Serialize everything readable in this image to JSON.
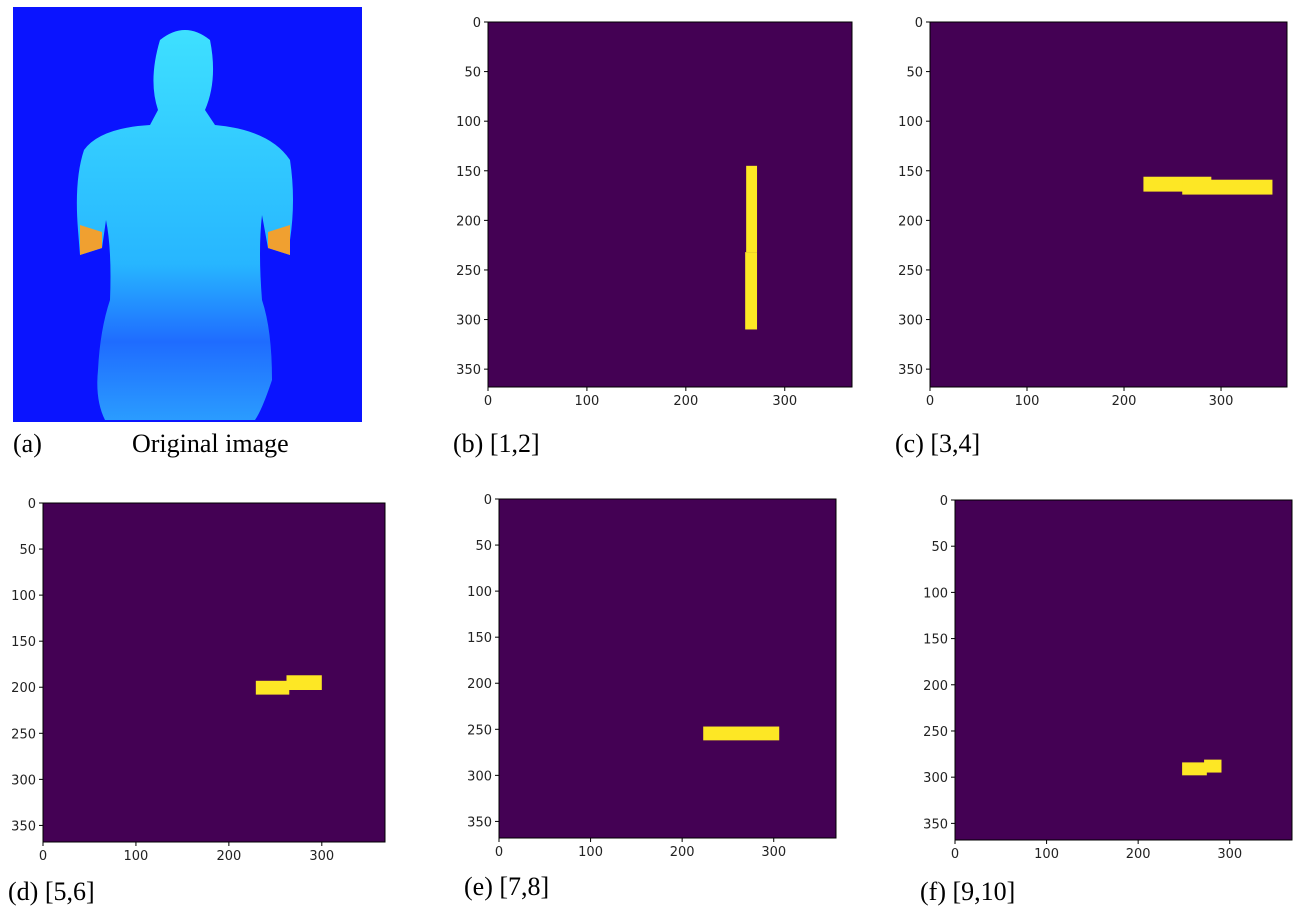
{
  "chart_data": [
    {
      "type": "image",
      "caption_label": "(a)",
      "caption": "Original image"
    },
    {
      "type": "mask",
      "caption": "(b) [1,2]",
      "xlim": [
        0,
        368
      ],
      "ylim": [
        368,
        0
      ],
      "xticks": [
        0,
        100,
        200,
        300
      ],
      "yticks": [
        0,
        50,
        100,
        150,
        200,
        250,
        300,
        350
      ],
      "background": "#440154",
      "color": "#fde725",
      "regions": [
        {
          "x": [
            261,
            272
          ],
          "y": [
            145,
            232
          ]
        },
        {
          "x": [
            260,
            272
          ],
          "y": [
            232,
            310
          ]
        }
      ]
    },
    {
      "type": "mask",
      "caption": "(c) [3,4]",
      "xlim": [
        0,
        368
      ],
      "ylim": [
        368,
        0
      ],
      "xticks": [
        0,
        100,
        200,
        300
      ],
      "yticks": [
        0,
        50,
        100,
        150,
        200,
        250,
        300,
        350
      ],
      "background": "#440154",
      "color": "#fde725",
      "regions": [
        {
          "x": [
            220,
            290
          ],
          "y": [
            156,
            171
          ]
        },
        {
          "x": [
            260,
            353
          ],
          "y": [
            159,
            174
          ]
        }
      ]
    },
    {
      "type": "mask",
      "caption": "(d) [5,6]",
      "xlim": [
        0,
        368
      ],
      "ylim": [
        368,
        0
      ],
      "xticks": [
        0,
        100,
        200,
        300
      ],
      "yticks": [
        0,
        50,
        100,
        150,
        200,
        250,
        300,
        350
      ],
      "background": "#440154",
      "color": "#fde725",
      "regions": [
        {
          "x": [
            229,
            265
          ],
          "y": [
            193,
            208
          ]
        },
        {
          "x": [
            262,
            300
          ],
          "y": [
            187,
            203
          ]
        }
      ]
    },
    {
      "type": "mask",
      "caption": "(e) [7,8]",
      "xlim": [
        0,
        368
      ],
      "ylim": [
        368,
        0
      ],
      "xticks": [
        0,
        100,
        200,
        300
      ],
      "yticks": [
        0,
        50,
        100,
        150,
        200,
        250,
        300,
        350
      ],
      "background": "#440154",
      "color": "#fde725",
      "regions": [
        {
          "x": [
            223,
            306
          ],
          "y": [
            247,
            262
          ]
        }
      ]
    },
    {
      "type": "mask",
      "caption": "(f) [9,10]",
      "xlim": [
        0,
        368
      ],
      "ylim": [
        368,
        0
      ],
      "xticks": [
        0,
        100,
        200,
        300
      ],
      "yticks": [
        0,
        50,
        100,
        150,
        200,
        250,
        300,
        350
      ],
      "background": "#440154",
      "color": "#fde725",
      "regions": [
        {
          "x": [
            248,
            275
          ],
          "y": [
            284,
            298
          ]
        },
        {
          "x": [
            272,
            291
          ],
          "y": [
            281,
            295
          ]
        }
      ]
    }
  ]
}
